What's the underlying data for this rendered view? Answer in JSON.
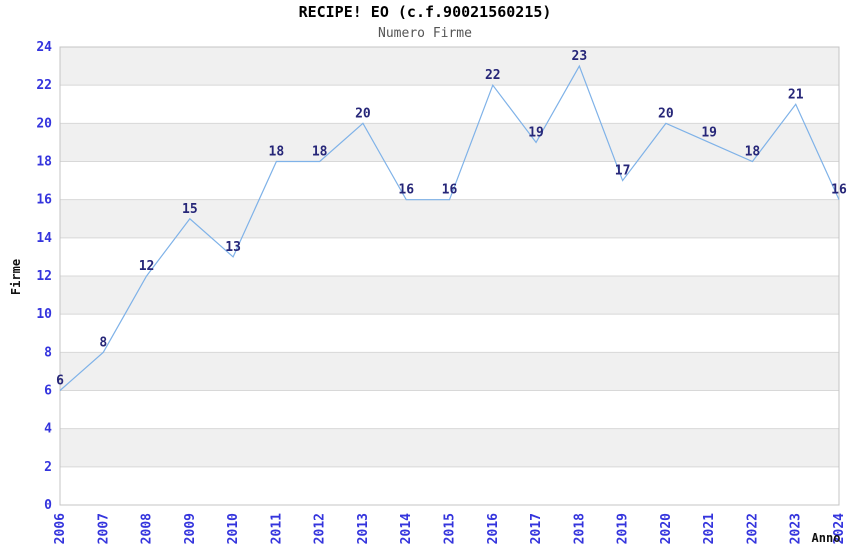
{
  "chart": {
    "title": "RECIPE! EO (c.f.90021560215)",
    "subtitle": "Numero Firme"
  },
  "chart_data": {
    "type": "line",
    "title": "RECIPE! EO (c.f.90021560215)",
    "subtitle": "Numero Firme",
    "xlabel": "Anno",
    "ylabel": "Firme",
    "x": [
      "2006",
      "2007",
      "2008",
      "2009",
      "2010",
      "2011",
      "2012",
      "2013",
      "2014",
      "2015",
      "2016",
      "2017",
      "2018",
      "2019",
      "2020",
      "2021",
      "2022",
      "2023",
      "2024"
    ],
    "values": [
      6,
      8,
      12,
      15,
      13,
      18,
      18,
      20,
      16,
      16,
      22,
      19,
      23,
      17,
      20,
      19,
      18,
      21,
      16
    ],
    "ylim": [
      0,
      24
    ],
    "y_tick_step": 2,
    "grid": true,
    "legend": "none",
    "data_labels": true,
    "colors": {
      "line": "#7fb2e8",
      "tick_label": "#3434dd",
      "point_label": "#262678",
      "band": "#f0f0f0",
      "gridline": "#d8d8d8",
      "plot_border": "#c4c4c4",
      "title": "#000000",
      "subtitle": "#555555",
      "axis_title": "#111111"
    }
  }
}
